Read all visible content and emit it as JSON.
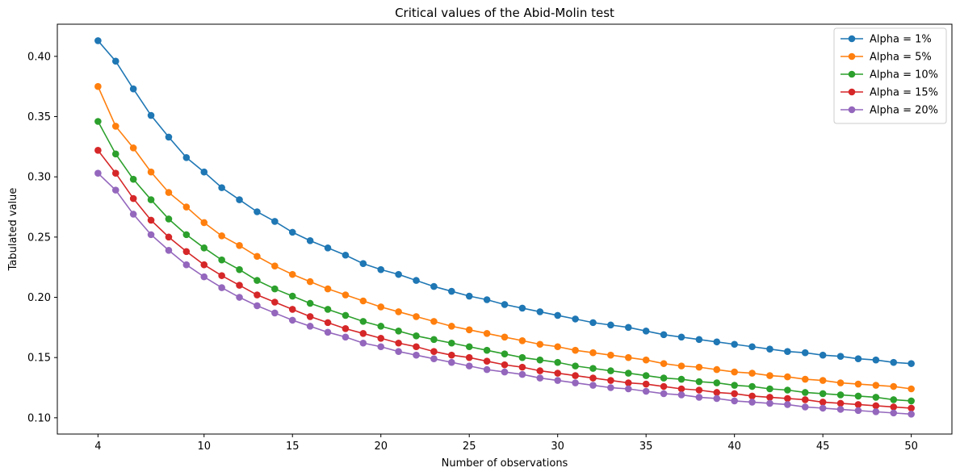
{
  "chart_data": {
    "type": "line",
    "title": "Critical values of the Abid-Molin test",
    "xlabel": "Number of observations",
    "ylabel": "Tabulated value",
    "xlim": [
      1.7,
      52.3
    ],
    "ylim": [
      0.0865,
      0.4267
    ],
    "x_ticks": [
      4,
      10,
      15,
      20,
      25,
      30,
      35,
      40,
      45,
      50
    ],
    "x_tick_labels": [
      "4",
      "10",
      "15",
      "20",
      "25",
      "30",
      "35",
      "40",
      "45",
      "50"
    ],
    "y_ticks": [
      0.1,
      0.15,
      0.2,
      0.25,
      0.3,
      0.35,
      0.4
    ],
    "y_tick_labels": [
      "0.10",
      "0.15",
      "0.20",
      "0.25",
      "0.30",
      "0.35",
      "0.40"
    ],
    "grid": false,
    "legend_position": "top-right",
    "markers": "circle",
    "x": [
      4,
      5,
      6,
      7,
      8,
      9,
      10,
      11,
      12,
      13,
      14,
      15,
      16,
      17,
      18,
      19,
      20,
      21,
      22,
      23,
      24,
      25,
      26,
      27,
      28,
      29,
      30,
      31,
      32,
      33,
      34,
      35,
      36,
      37,
      38,
      39,
      40,
      41,
      42,
      43,
      44,
      45,
      46,
      47,
      48,
      49,
      50
    ],
    "series": [
      {
        "name": "Alpha = 1%",
        "color": "#1f77b4",
        "values": [
          0.413,
          0.396,
          0.373,
          0.351,
          0.333,
          0.316,
          0.304,
          0.291,
          0.281,
          0.271,
          0.263,
          0.254,
          0.247,
          0.241,
          0.235,
          0.228,
          0.223,
          0.219,
          0.214,
          0.209,
          0.205,
          0.201,
          0.198,
          0.194,
          0.191,
          0.188,
          0.185,
          0.182,
          0.179,
          0.177,
          0.175,
          0.172,
          0.169,
          0.167,
          0.165,
          0.163,
          0.161,
          0.159,
          0.157,
          0.155,
          0.154,
          0.152,
          0.151,
          0.149,
          0.148,
          0.146,
          0.145
        ]
      },
      {
        "name": "Alpha = 5%",
        "color": "#ff7f0e",
        "values": [
          0.375,
          0.342,
          0.324,
          0.304,
          0.287,
          0.275,
          0.262,
          0.251,
          0.243,
          0.234,
          0.226,
          0.219,
          0.213,
          0.207,
          0.202,
          0.197,
          0.192,
          0.188,
          0.184,
          0.18,
          0.176,
          0.173,
          0.17,
          0.167,
          0.164,
          0.161,
          0.159,
          0.156,
          0.154,
          0.152,
          0.15,
          0.148,
          0.145,
          0.143,
          0.142,
          0.14,
          0.138,
          0.137,
          0.135,
          0.134,
          0.132,
          0.131,
          0.129,
          0.128,
          0.127,
          0.126,
          0.124
        ]
      },
      {
        "name": "Alpha = 10%",
        "color": "#2ca02c",
        "values": [
          0.346,
          0.319,
          0.298,
          0.281,
          0.265,
          0.252,
          0.241,
          0.231,
          0.223,
          0.214,
          0.207,
          0.201,
          0.195,
          0.19,
          0.185,
          0.18,
          0.176,
          0.172,
          0.168,
          0.165,
          0.162,
          0.159,
          0.156,
          0.153,
          0.15,
          0.148,
          0.146,
          0.143,
          0.141,
          0.139,
          0.137,
          0.135,
          0.133,
          0.132,
          0.13,
          0.129,
          0.127,
          0.126,
          0.124,
          0.123,
          0.121,
          0.12,
          0.119,
          0.118,
          0.117,
          0.115,
          0.114
        ]
      },
      {
        "name": "Alpha = 15%",
        "color": "#d62728",
        "values": [
          0.322,
          0.303,
          0.282,
          0.264,
          0.25,
          0.238,
          0.227,
          0.218,
          0.21,
          0.202,
          0.196,
          0.19,
          0.184,
          0.179,
          0.174,
          0.17,
          0.166,
          0.162,
          0.159,
          0.155,
          0.152,
          0.15,
          0.147,
          0.144,
          0.142,
          0.139,
          0.137,
          0.135,
          0.133,
          0.131,
          0.129,
          0.128,
          0.126,
          0.124,
          0.123,
          0.121,
          0.12,
          0.118,
          0.117,
          0.116,
          0.115,
          0.113,
          0.112,
          0.111,
          0.11,
          0.109,
          0.108
        ]
      },
      {
        "name": "Alpha = 20%",
        "color": "#9467bd",
        "values": [
          0.303,
          0.289,
          0.269,
          0.252,
          0.239,
          0.227,
          0.217,
          0.208,
          0.2,
          0.193,
          0.187,
          0.181,
          0.176,
          0.171,
          0.167,
          0.162,
          0.159,
          0.155,
          0.152,
          0.149,
          0.146,
          0.143,
          0.14,
          0.138,
          0.136,
          0.133,
          0.131,
          0.129,
          0.127,
          0.125,
          0.124,
          0.122,
          0.12,
          0.119,
          0.117,
          0.116,
          0.114,
          0.113,
          0.112,
          0.111,
          0.109,
          0.108,
          0.107,
          0.106,
          0.105,
          0.104,
          0.103
        ]
      }
    ]
  }
}
